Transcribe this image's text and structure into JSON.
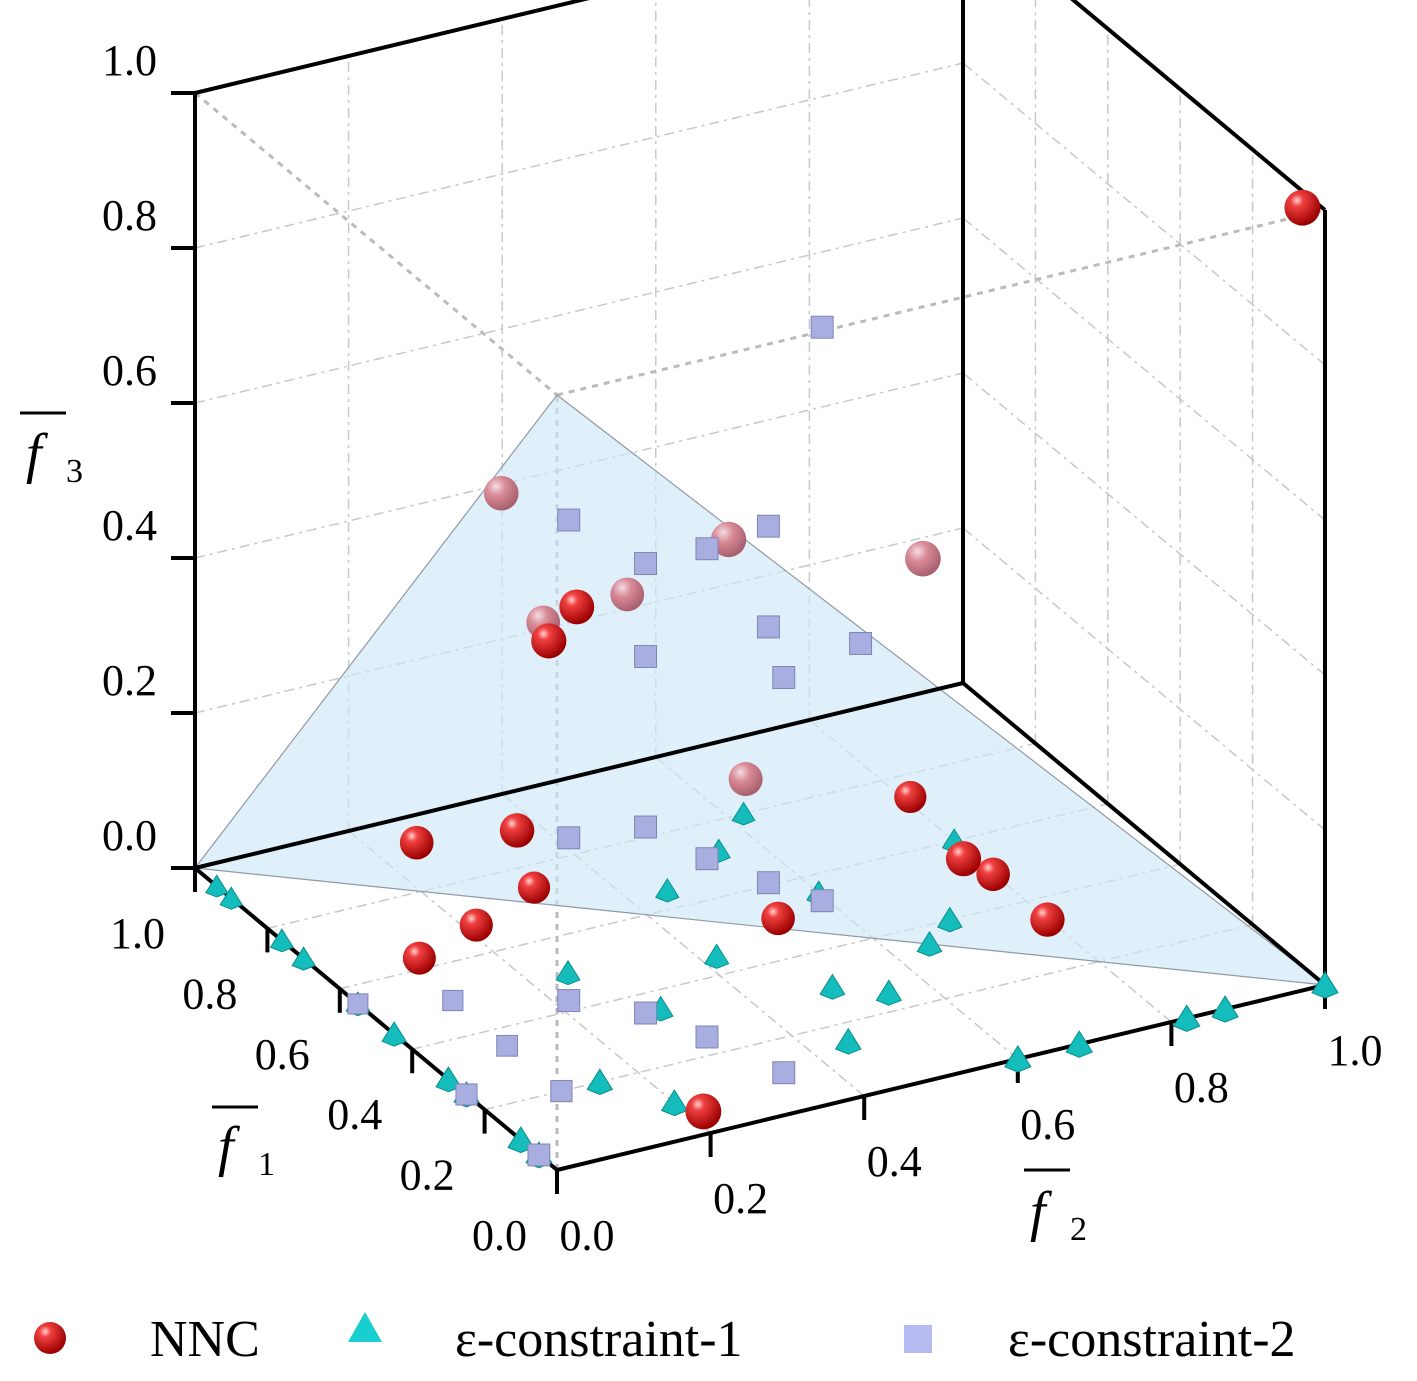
{
  "chart_data": {
    "type": "scatter3d",
    "axes": {
      "x": {
        "label": "f",
        "subscript": "1",
        "ticks": [
          "0.0",
          "0.2",
          "0.4",
          "0.6",
          "0.8",
          "1.0"
        ],
        "range": [
          0,
          1
        ]
      },
      "y": {
        "label": "f",
        "subscript": "2",
        "ticks": [
          "0.0",
          "0.2",
          "0.4",
          "0.6",
          "0.8",
          "1.0"
        ],
        "range": [
          0,
          1
        ]
      },
      "z": {
        "label": "f",
        "subscript": "3",
        "ticks": [
          "0.0",
          "0.2",
          "0.4",
          "0.6",
          "0.8",
          "1.0"
        ],
        "range": [
          0,
          1
        ]
      }
    },
    "grid": true,
    "legend_position": "bottom",
    "colors": {
      "nnc": "#e02020",
      "eps1": "#1fc9c9",
      "eps2": "#a9aee0",
      "plane": "#cfe8f7"
    },
    "plane_vertices": [
      [
        0,
        0,
        1
      ],
      [
        1,
        0,
        0
      ],
      [
        0,
        1,
        0
      ]
    ],
    "series": [
      {
        "name": "NNC",
        "marker": "sphere",
        "points": [
          [
            0.02,
            0.98,
            1.0
          ],
          [
            0.05,
            0.5,
            0.65
          ],
          [
            0.26,
            0.05,
            0.76
          ],
          [
            0.12,
            0.28,
            0.7
          ],
          [
            0.2,
            0.12,
            0.62
          ],
          [
            0.15,
            0.06,
            0.61
          ],
          [
            0.42,
            0.18,
            0.5
          ],
          [
            0.4,
            0.28,
            0.52
          ],
          [
            0.37,
            0.42,
            0.26
          ],
          [
            0.28,
            0.08,
            0.31
          ],
          [
            0.43,
            0.02,
            0.25
          ],
          [
            0.52,
            0.14,
            0.08
          ],
          [
            0.55,
            0.08,
            0.04
          ],
          [
            0.15,
            0.6,
            0.2
          ],
          [
            0.45,
            0.5,
            0.03
          ],
          [
            0.3,
            0.78,
            0.02
          ],
          [
            0.45,
            0.78,
            0.02
          ],
          [
            0.7,
            0.3,
            0.02
          ],
          [
            0.7,
            0.79,
            0.02
          ],
          [
            0.02,
            0.2,
            0.02
          ]
        ]
      },
      {
        "name": "ε-constraint-1",
        "marker": "triangle",
        "points": [
          [
            0.05,
            0.0,
            0.0
          ],
          [
            0.1,
            0.0,
            0.0
          ],
          [
            0.25,
            0.0,
            0.0
          ],
          [
            0.3,
            0.0,
            0.0
          ],
          [
            0.45,
            0.0,
            0.0
          ],
          [
            0.55,
            0.0,
            0.0
          ],
          [
            0.7,
            0.0,
            0.0
          ],
          [
            0.76,
            0.0,
            0.0
          ],
          [
            0.9,
            0.0,
            0.0
          ],
          [
            0.94,
            0.0,
            0.0
          ],
          [
            0.0,
            0.6,
            0.0
          ],
          [
            0.0,
            0.68,
            0.0
          ],
          [
            0.0,
            0.82,
            0.0
          ],
          [
            0.0,
            0.87,
            0.0
          ],
          [
            0.0,
            1.0,
            0.0
          ],
          [
            0.1,
            0.2,
            0.0
          ],
          [
            0.15,
            0.45,
            0.0
          ],
          [
            0.3,
            0.5,
            0.0
          ],
          [
            0.5,
            0.25,
            0.0
          ],
          [
            0.25,
            0.55,
            0.0
          ],
          [
            0.35,
            0.65,
            0.0
          ],
          [
            0.4,
            0.7,
            0.0
          ],
          [
            0.55,
            0.6,
            0.0
          ],
          [
            0.65,
            0.45,
            0.0
          ],
          [
            0.72,
            0.55,
            0.0
          ],
          [
            0.8,
            0.62,
            0.0
          ],
          [
            0.6,
            0.8,
            0.0
          ],
          [
            0.45,
            0.42,
            0.0
          ],
          [
            0.2,
            0.15,
            0.0
          ],
          [
            0.35,
            0.3,
            0.0
          ]
        ]
      },
      {
        "name": "ε-constraint-2",
        "marker": "cube",
        "points": [
          [
            0.01,
            0.35,
            1.0
          ],
          [
            0.01,
            0.02,
            0.83
          ],
          [
            0.01,
            0.12,
            0.75
          ],
          [
            0.01,
            0.2,
            0.75
          ],
          [
            0.01,
            0.28,
            0.76
          ],
          [
            0.01,
            0.12,
            0.63
          ],
          [
            0.01,
            0.28,
            0.63
          ],
          [
            0.01,
            0.3,
            0.56
          ],
          [
            0.01,
            0.4,
            0.58
          ],
          [
            0.01,
            0.02,
            0.42
          ],
          [
            0.01,
            0.12,
            0.41
          ],
          [
            0.01,
            0.2,
            0.35
          ],
          [
            0.01,
            0.28,
            0.3
          ],
          [
            0.01,
            0.35,
            0.26
          ],
          [
            0.01,
            0.02,
            0.21
          ],
          [
            0.01,
            0.12,
            0.17
          ],
          [
            0.01,
            0.2,
            0.12
          ],
          [
            0.01,
            0.3,
            0.05
          ],
          [
            0.2,
            0.1,
            0.0
          ],
          [
            0.35,
            0.1,
            0.0
          ],
          [
            0.5,
            0.1,
            0.0
          ],
          [
            0.05,
            0.0,
            0.0
          ],
          [
            0.25,
            0.0,
            0.0
          ],
          [
            0.55,
            0.0,
            0.0
          ]
        ]
      }
    ]
  },
  "legend": [
    {
      "label": "NNC"
    },
    {
      "label": "ε-constraint-1"
    },
    {
      "label": "ε-constraint-2"
    }
  ]
}
